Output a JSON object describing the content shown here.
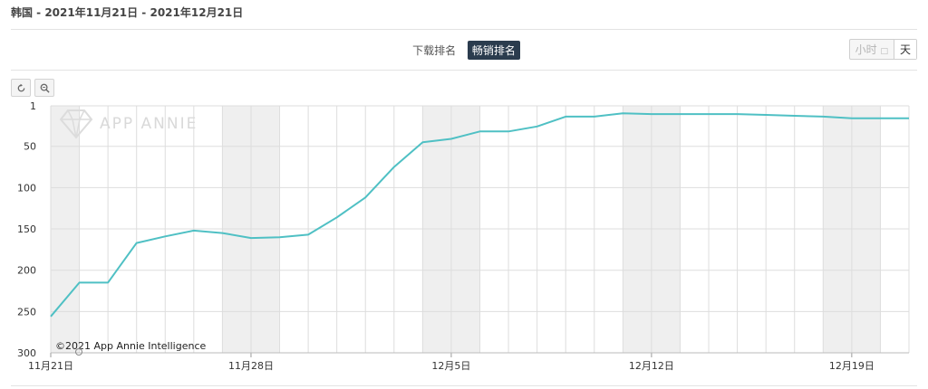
{
  "header": {
    "title": "韩国 - 2021年11月21日 - 2021年12月21日"
  },
  "tabs": [
    {
      "label": "下载排名",
      "active": false
    },
    {
      "label": "畅销排名",
      "active": true
    }
  ],
  "unit_toggle": {
    "hour_label": "小时",
    "day_label": "天"
  },
  "toolbar": {
    "reset_icon": "reset-icon",
    "zoom_icon": "zoom-icon"
  },
  "watermark": "APP ANNIE",
  "credit": "©2021 App Annie Intelligence",
  "chart_data": {
    "type": "line",
    "y_axis": {
      "reversed": true,
      "range": [
        1,
        300
      ],
      "ticks": [
        "1",
        "50",
        "100",
        "150",
        "200",
        "250",
        "300"
      ]
    },
    "x_tick_labels": [
      "11月21日",
      "11月28日",
      "12月5日",
      "12月12日",
      "12月19日"
    ],
    "weekend_shading": true,
    "grid": true,
    "series": [
      {
        "color": "#4fc0c4",
        "values": [
          256,
          215,
          215,
          167,
          159,
          152,
          155,
          161,
          160,
          157,
          136,
          112,
          75,
          45,
          41,
          32,
          32,
          26,
          14,
          14,
          10,
          11,
          11,
          11,
          11,
          12,
          13,
          14,
          16,
          16,
          16
        ]
      }
    ]
  }
}
